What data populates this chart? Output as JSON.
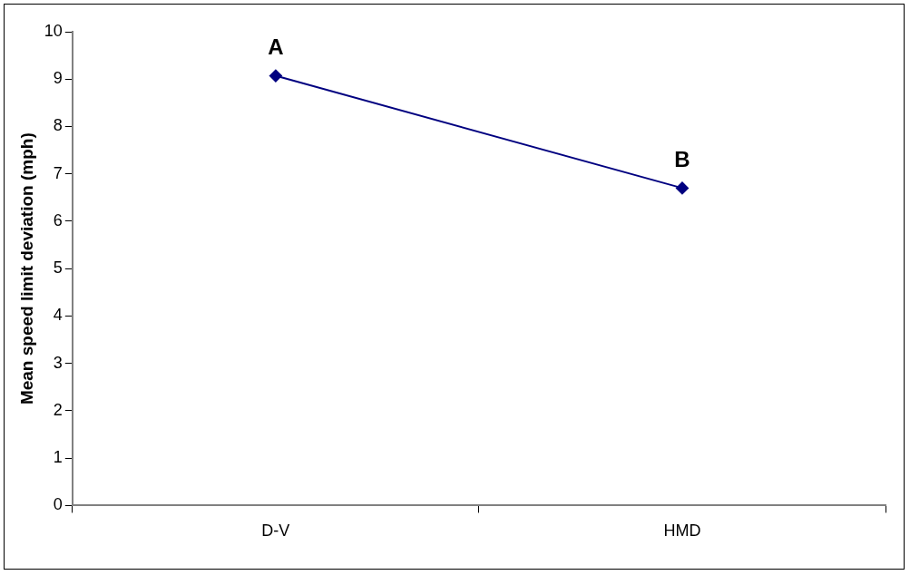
{
  "chart_data": {
    "type": "line",
    "ylabel": "Mean speed limit deviation (mph)",
    "categories": [
      "D-V",
      "HMD"
    ],
    "series": [
      {
        "color": "#000080",
        "values": [
          9.07,
          6.7
        ]
      }
    ],
    "ylim": [
      0,
      10
    ],
    "yticks": [
      0,
      1,
      2,
      3,
      4,
      5,
      6,
      7,
      8,
      9,
      10
    ],
    "grid": false,
    "legend": false,
    "marker": "diamond",
    "line_style": "solid",
    "annotations": [
      {
        "text": "A",
        "x": "D-V",
        "y": 9.07
      },
      {
        "text": "B",
        "x": "HMD",
        "y": 6.7
      }
    ]
  }
}
